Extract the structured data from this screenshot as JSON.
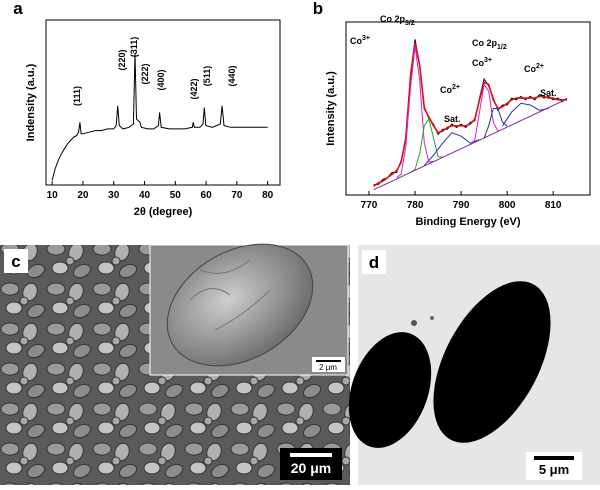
{
  "chart_data": [
    {
      "type": "line",
      "panel_label": "a",
      "x_label": "2θ (degree)",
      "y_label": "Indensity (a.u.)",
      "xlim": [
        8,
        84
      ],
      "xticks": [
        10,
        20,
        30,
        40,
        50,
        60,
        70,
        80
      ],
      "ylim": [
        0,
        100
      ],
      "x": [
        10,
        11,
        12,
        13,
        14,
        15,
        16,
        17,
        18,
        18.6,
        19,
        19.4,
        20,
        22,
        24,
        26,
        28,
        30,
        30.8,
        31.3,
        31.8,
        33,
        35,
        36.4,
        36.9,
        37.4,
        38.5,
        39,
        41,
        43,
        44.5,
        44.9,
        45.4,
        48,
        50,
        53,
        55.5,
        55.8,
        56.2,
        58,
        59,
        59.4,
        59.9,
        62,
        64.6,
        65.2,
        65.8,
        68,
        72,
        76,
        80
      ],
      "series": [
        {
          "color": "#000000",
          "values": [
            3,
            10,
            15,
            19,
            22,
            25,
            27,
            29,
            30,
            32,
            38,
            31,
            31,
            32,
            33,
            33,
            34,
            34,
            36,
            48,
            36,
            34,
            35,
            37,
            80,
            40,
            38,
            35,
            34,
            34,
            36,
            44,
            35,
            34,
            34,
            34,
            35,
            38,
            35,
            35,
            37,
            47,
            36,
            35,
            37,
            48,
            36,
            35,
            35,
            35,
            35
          ]
        }
      ],
      "annotations": [
        "(111)",
        "(220)",
        "(311)",
        "(222)",
        "(400)",
        "(422)",
        "(511)",
        "(440)"
      ]
    },
    {
      "type": "line",
      "panel_label": "b",
      "x_label": "Binding Energy (eV)",
      "y_label": "Intensity (a.u.)",
      "xlim": [
        765,
        818
      ],
      "xticks": [
        770,
        780,
        790,
        800,
        810
      ],
      "ylim": [
        0,
        100
      ],
      "series": [
        {
          "color": "#000000",
          "x": [
            771,
            772,
            773,
            774,
            775,
            776,
            777,
            778,
            779,
            780,
            781,
            782,
            783,
            784,
            785,
            786,
            787,
            788,
            789,
            790,
            791,
            792,
            793,
            794,
            795,
            796,
            797,
            798,
            799,
            800,
            801,
            802,
            803,
            804,
            805,
            806,
            807,
            808,
            809,
            810,
            811,
            812,
            813
          ],
          "values": [
            6,
            6,
            9,
            10,
            13,
            13,
            20,
            32,
            70,
            90,
            74,
            51,
            44,
            41,
            35,
            38,
            38,
            41,
            39,
            41,
            39,
            42,
            43,
            56,
            67,
            63,
            56,
            49,
            52,
            52,
            56,
            55,
            57,
            55,
            57,
            55,
            58,
            56,
            57,
            55,
            56,
            54,
            56
          ]
        },
        {
          "color": "#e01010",
          "x": [
            771,
            772,
            773,
            774,
            775,
            776,
            777,
            778,
            779,
            780,
            781,
            782,
            783,
            784,
            785,
            786,
            787,
            788,
            789,
            790,
            791,
            792,
            793,
            794,
            795,
            796,
            797,
            798,
            799,
            800,
            801,
            802,
            803,
            804,
            805,
            806,
            807,
            808,
            809,
            810,
            811,
            812,
            813
          ],
          "values": [
            5,
            7,
            8,
            10,
            12,
            14,
            19,
            33,
            68,
            88,
            75,
            50,
            45,
            40,
            36,
            37,
            39,
            40,
            40,
            40,
            40,
            41,
            44,
            55,
            65,
            64,
            55,
            50,
            51,
            53,
            55,
            56,
            56,
            56,
            56,
            56,
            57,
            57,
            56,
            56,
            55,
            55,
            55
          ]
        },
        {
          "color": "#d020d0",
          "x": [
            776,
            777,
            778,
            779,
            780,
            781,
            782,
            783,
            784
          ],
          "values": [
            10,
            12,
            28,
            62,
            86,
            66,
            30,
            19,
            19.5
          ]
        },
        {
          "color": "#22aa22",
          "x": [
            779,
            780,
            781,
            782,
            783,
            784,
            785,
            786
          ],
          "values": [
            13,
            15,
            24,
            40,
            44,
            33,
            22,
            22
          ]
        },
        {
          "color": "#2030c0",
          "x": [
            782,
            784,
            786,
            788,
            790,
            792,
            794
          ],
          "values": [
            17,
            23,
            30,
            36,
            34,
            30,
            32
          ]
        },
        {
          "color": "#d020d0",
          "x": [
            792,
            793,
            794,
            795,
            796,
            797,
            798
          ],
          "values": [
            29,
            32,
            48,
            64,
            60,
            42,
            37
          ]
        },
        {
          "color": "#2030c0",
          "x": [
            795,
            796,
            797,
            798,
            799,
            800
          ],
          "values": [
            33,
            40,
            50,
            50,
            42,
            40
          ]
        },
        {
          "color": "#2030c0",
          "x": [
            799,
            801,
            803,
            805,
            807,
            809
          ],
          "values": [
            40,
            48,
            53,
            52,
            49,
            50
          ]
        },
        {
          "color": "#8030a0",
          "x": [
            771,
            813
          ],
          "values": [
            3,
            55.5
          ]
        }
      ],
      "annotations": [
        {
          "text": "Co",
          "sup": "3+"
        },
        {
          "text": "Co 2p",
          "sub": "3/2"
        },
        {
          "text": "Co",
          "sup": "2+"
        },
        {
          "text": "Sat."
        },
        {
          "text": "Co 2p",
          "sub": "1/2"
        },
        {
          "text": "Co",
          "sup": "3+"
        },
        {
          "text": "Co",
          "sup": "2+"
        },
        {
          "text": "Sat."
        }
      ]
    }
  ],
  "images": [
    {
      "panel_label": "c",
      "scale_bar": "20 μm",
      "inset_scale_bar": "2 μm"
    },
    {
      "panel_label": "d",
      "scale_bar": "5 μm"
    }
  ]
}
